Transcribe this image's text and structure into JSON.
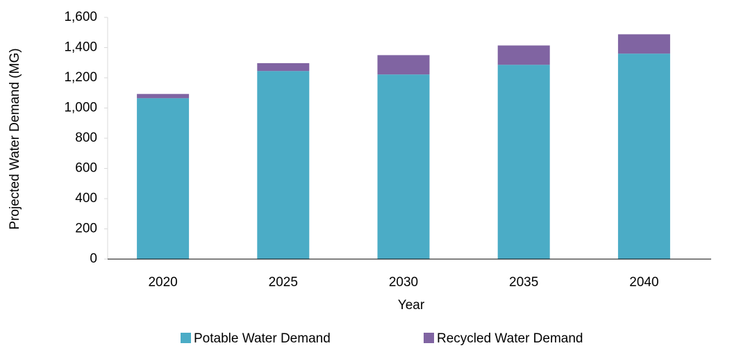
{
  "chart_data": {
    "type": "stacked_bar",
    "categories": [
      "2020",
      "2025",
      "2030",
      "2035",
      "2040"
    ],
    "series": [
      {
        "name": "Potable Water Demand",
        "color": "#4bacc6",
        "values": [
          1065,
          1245,
          1222,
          1286,
          1360
        ]
      },
      {
        "name": "Recycled Water Demand",
        "color": "#8064a2",
        "values": [
          28,
          52,
          128,
          128,
          128
        ]
      }
    ],
    "x_label": "Year",
    "y_label": "Projected Water Demand (MG)",
    "ylim": [
      0,
      1600
    ],
    "yticks": [
      0,
      200,
      400,
      600,
      800,
      {
        "value": 1000,
        "label": "1,000"
      },
      {
        "value": 1200,
        "label": "1,200"
      },
      {
        "value": 1400,
        "label": "1,400"
      },
      {
        "value": 1600,
        "label": "1,600"
      }
    ],
    "grid": false,
    "legend": "bottom"
  }
}
